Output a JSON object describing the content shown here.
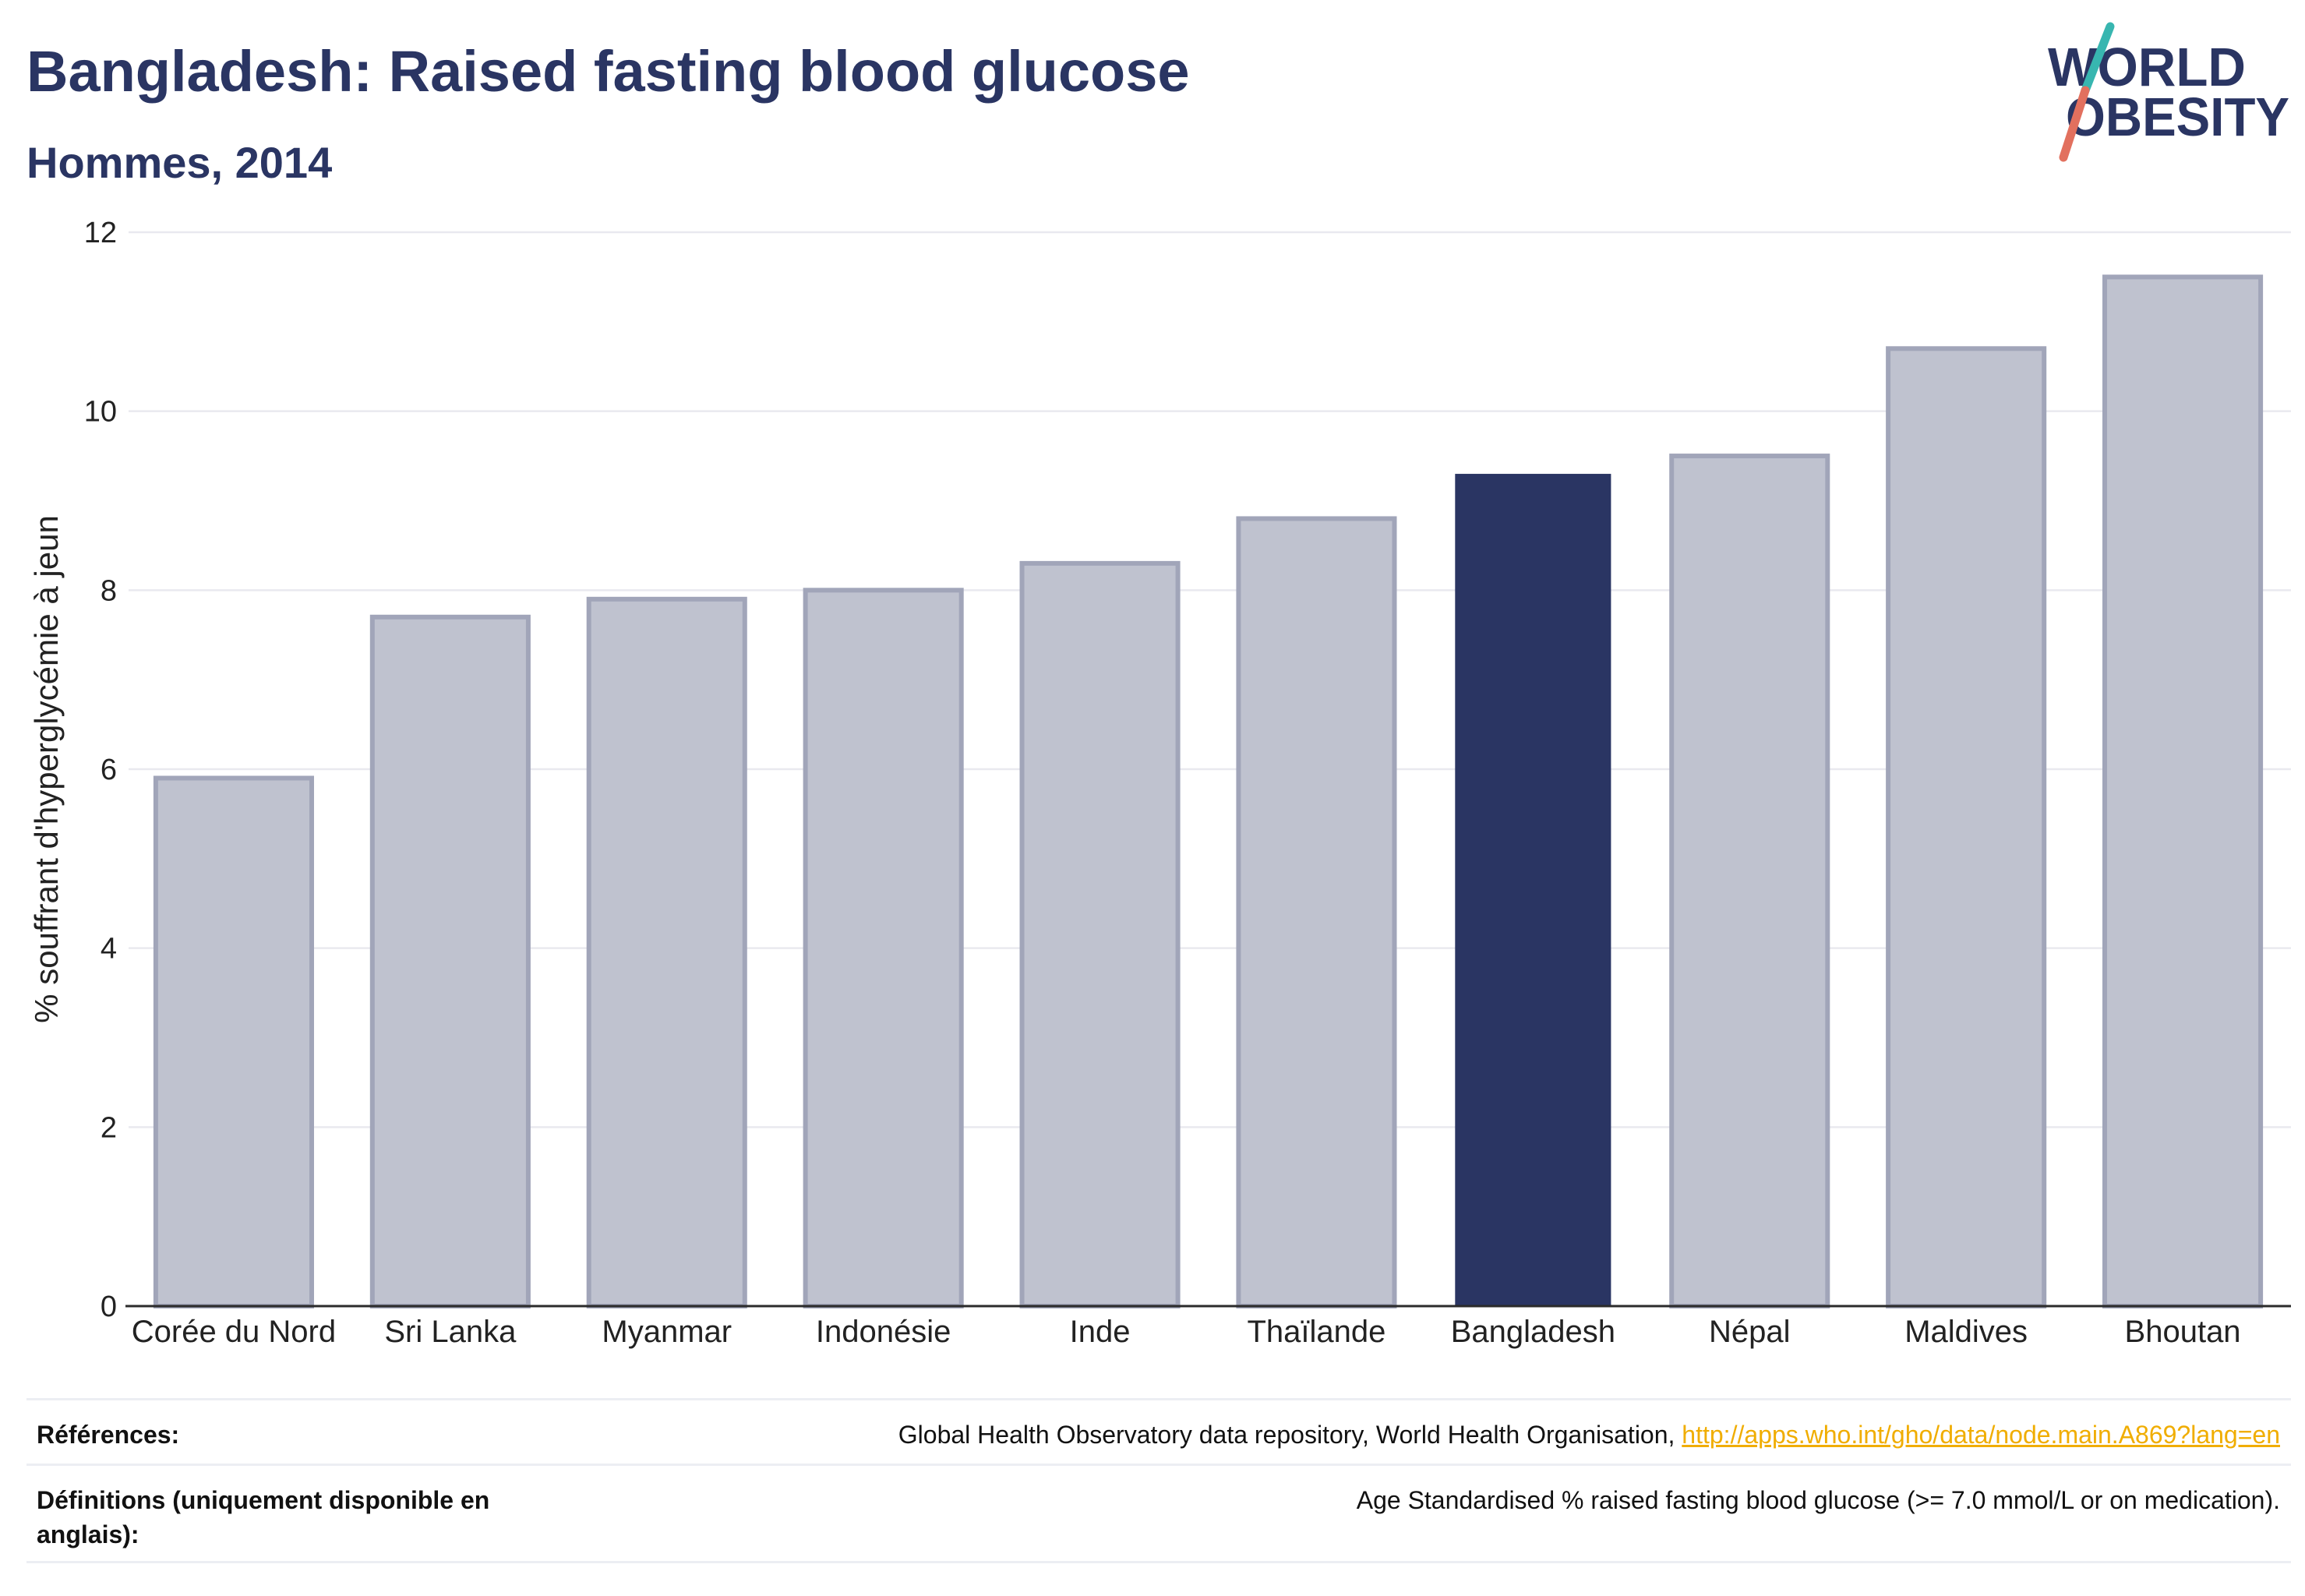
{
  "chart_data": {
    "type": "bar",
    "title": "Bangladesh: Raised fasting blood glucose",
    "subtitle": "Hommes, 2014",
    "xlabel": "",
    "ylabel": "% souffrant d'hyperglycémie à jeun",
    "categories": [
      "Corée du Nord",
      "Sri Lanka",
      "Myanmar",
      "Indonésie",
      "Inde",
      "Thaïlande",
      "Bangladesh",
      "Népal",
      "Maldives",
      "Bhoutan"
    ],
    "values": [
      5.9,
      7.7,
      7.9,
      8.0,
      8.3,
      8.8,
      9.3,
      9.5,
      10.7,
      11.5
    ],
    "highlight": "Bangladesh",
    "ylim": [
      0,
      12
    ],
    "yticks": [
      0,
      2,
      4,
      6,
      8,
      10,
      12
    ],
    "grid": true,
    "show_legend": false,
    "colors": {
      "bar": "#bfc2cf",
      "bar_border": "#a1a5b9",
      "highlight": "#2a3563",
      "grid": "#e9e9ef",
      "axis": "#2b2b2b",
      "text": "#222222",
      "title": "#2a3563"
    }
  },
  "logo": {
    "line1": "WORLD",
    "line2": "OBESITY",
    "colors": {
      "text": "#2a3563",
      "slash_top": "#38b6b0",
      "slash_bottom": "#e2705e"
    }
  },
  "footer": {
    "references_label": "Références:",
    "references_text": "Global Health Observatory data repository, World Health Organisation, ",
    "references_link": "http://apps.who.int/gho/data/node.main.A869?lang=en",
    "definitions_label": "Définitions (uniquement disponible en anglais):",
    "definitions_text": "Age Standardised % raised fasting blood glucose (>= 7.0 mmol/L or on medication).",
    "link_color": "#f0ad00"
  }
}
